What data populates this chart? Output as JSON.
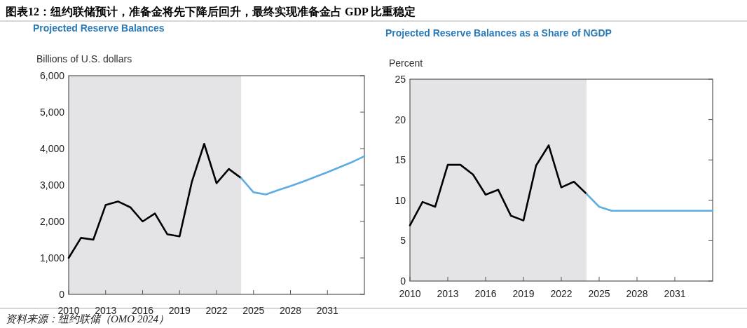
{
  "chart_data": [
    {
      "type": "line",
      "title": "图表12：纽约联储预计，准备金将先下降后回升，最终实现准备金占 GDP 比重稳定",
      "subtitle": "Projected Reserve Balances",
      "ylabel": "Billions of U.S. dollars",
      "annotations": [
        "资料来源：纽约联储（OMO 2024）"
      ],
      "xlim": [
        2010,
        2034
      ],
      "xticks": [
        2010,
        2013,
        2016,
        2019,
        2022,
        2025,
        2028,
        2031
      ],
      "ylim": [
        0,
        6000
      ],
      "yticks": [
        {
          "value": 0,
          "label": "0"
        },
        {
          "value": 1000,
          "label": "1,000"
        },
        {
          "value": 2000,
          "label": "2,000"
        },
        {
          "value": 3000,
          "label": "3,000"
        },
        {
          "value": 4000,
          "label": "4,000"
        },
        {
          "value": 5000,
          "label": "5,000"
        },
        {
          "value": 6000,
          "label": "6,000"
        }
      ],
      "grid": false,
      "bands": [
        {
          "axis": "x",
          "from": 2010,
          "to": 2024,
          "color": "#e4e4e6"
        }
      ],
      "series": [
        {
          "color": "#000000",
          "x": [
            2010,
            2011,
            2012,
            2013,
            2014,
            2015,
            2016,
            2017,
            2018,
            2019,
            2020,
            2021,
            2022,
            2023,
            2024
          ],
          "values": [
            1000,
            1550,
            1500,
            2450,
            2550,
            2390,
            2000,
            2220,
            1650,
            1590,
            3090,
            4130,
            3050,
            3440,
            3190
          ]
        },
        {
          "color": "#5dade2",
          "x": [
            2024,
            2025,
            2026,
            2027,
            2028,
            2029,
            2030,
            2031,
            2032,
            2033,
            2034
          ],
          "values": [
            3190,
            2800,
            2740,
            2860,
            2970,
            3090,
            3220,
            3350,
            3490,
            3630,
            3790
          ]
        }
      ]
    },
    {
      "type": "line",
      "title": "Projected Reserve Balances as a Share of NGDP",
      "ylabel": "Percent",
      "xlim": [
        2010,
        2034
      ],
      "xticks": [
        2010,
        2013,
        2016,
        2019,
        2022,
        2025,
        2028,
        2031
      ],
      "ylim": [
        0,
        25
      ],
      "yticks": [
        0,
        5,
        10,
        15,
        20,
        25
      ],
      "grid": false,
      "bands": [
        {
          "axis": "x",
          "from": 2010,
          "to": 2024,
          "color": "#e4e4e6"
        }
      ],
      "series": [
        {
          "color": "#000000",
          "x": [
            2010,
            2011,
            2012,
            2013,
            2014,
            2015,
            2016,
            2017,
            2018,
            2019,
            2020,
            2021,
            2022,
            2023,
            2024
          ],
          "values": [
            6.9,
            9.8,
            9.2,
            14.4,
            14.4,
            13.2,
            10.7,
            11.3,
            8.1,
            7.5,
            14.3,
            16.8,
            11.6,
            12.3,
            10.8
          ]
        },
        {
          "color": "#5dade2",
          "x": [
            2024,
            2025,
            2026,
            2027,
            2028,
            2029,
            2030,
            2031,
            2032,
            2033,
            2034
          ],
          "values": [
            10.8,
            9.2,
            8.7,
            8.7,
            8.7,
            8.7,
            8.7,
            8.7,
            8.7,
            8.7,
            8.7
          ]
        }
      ]
    }
  ]
}
